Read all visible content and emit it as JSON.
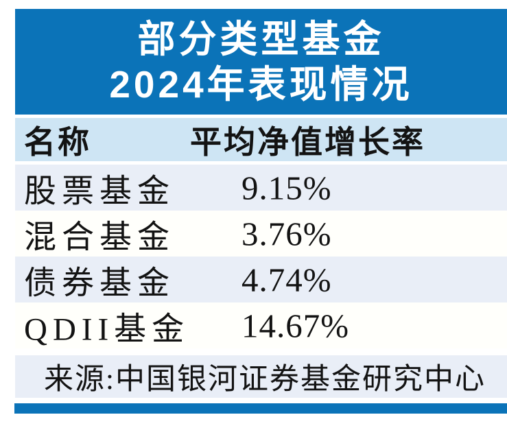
{
  "header": {
    "title_line1": "部分类型基金",
    "title_line2": "2024年表现情况"
  },
  "table": {
    "columns": [
      "名称",
      "平均净值增长率"
    ],
    "rows": [
      {
        "name": "股票基金",
        "value": "9.15%"
      },
      {
        "name": "混合基金",
        "value": "3.76%"
      },
      {
        "name": "债券基金",
        "value": "4.74%"
      },
      {
        "name": "QDII基金",
        "value": "14.67%"
      }
    ]
  },
  "source": {
    "text": "来源:中国银河证券基金研究中心"
  },
  "colors": {
    "primary_blue": "#0b73b8",
    "column_header_band": "#cee5f4",
    "row_light_blue": "#e9eef7",
    "row_white": "#fffffb",
    "title_text": "#ffffff",
    "body_text": "#131313"
  },
  "chart_data": {
    "type": "table",
    "title": "部分类型基金2024年表现情况",
    "columns": [
      "名称",
      "平均净值增长率"
    ],
    "categories": [
      "股票基金",
      "混合基金",
      "债券基金",
      "QDII基金"
    ],
    "values": [
      9.15,
      3.76,
      4.74,
      14.67
    ],
    "unit": "%",
    "source": "来源:中国银河证券基金研究中心",
    "layout": "header title block on blue, two-column table with alternating row shading, source line at bottom"
  }
}
